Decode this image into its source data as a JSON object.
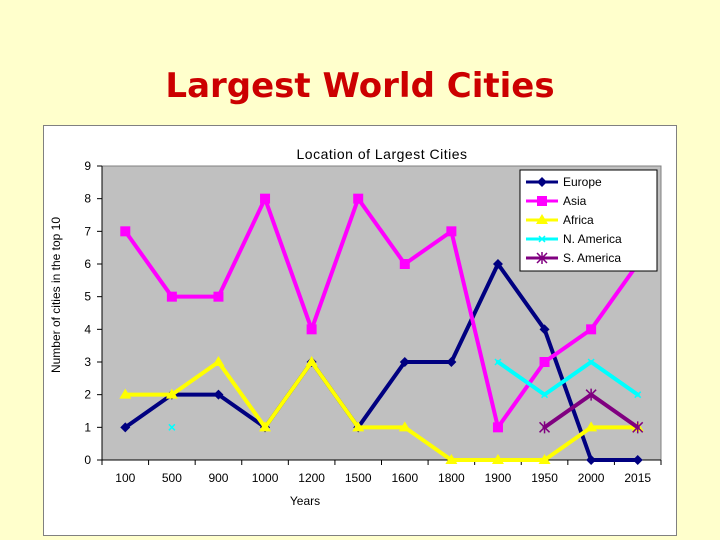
{
  "slide": {
    "title": "Largest World Cities"
  },
  "chart_data": {
    "type": "line",
    "title": "Location of Largest Cities",
    "xlabel": "Years",
    "ylabel": "Number of cities in the top 10",
    "categories": [
      "100",
      "500",
      "900",
      "1000",
      "1200",
      "1500",
      "1600",
      "1800",
      "1900",
      "1950",
      "2000",
      "2015"
    ],
    "ylim": [
      0,
      9
    ],
    "yticks": [
      0,
      1,
      2,
      3,
      4,
      5,
      6,
      7,
      8,
      9
    ],
    "grid": false,
    "legend_position": "top-right",
    "plot_background": "#c0c0c0",
    "series": [
      {
        "name": "Europe",
        "color": "#000080",
        "marker": "diamond",
        "values": [
          1,
          2,
          2,
          1,
          3,
          1,
          3,
          3,
          6,
          4,
          0,
          0
        ]
      },
      {
        "name": "Asia",
        "color": "#ff00ff",
        "marker": "square",
        "values": [
          7,
          5,
          5,
          8,
          4,
          8,
          6,
          7,
          1,
          3,
          4,
          6
        ]
      },
      {
        "name": "Africa",
        "color": "#ffff00",
        "marker": "triangle",
        "values": [
          2,
          2,
          3,
          1,
          3,
          1,
          1,
          0,
          0,
          0,
          1,
          1
        ]
      },
      {
        "name": "N. America",
        "color": "#00ffff",
        "marker": "x",
        "values": [
          null,
          1,
          null,
          null,
          null,
          null,
          null,
          null,
          3,
          2,
          3,
          2
        ]
      },
      {
        "name": "S. America",
        "color": "#800080",
        "marker": "star",
        "values": [
          null,
          null,
          null,
          null,
          null,
          null,
          null,
          null,
          null,
          1,
          2,
          1
        ]
      }
    ]
  }
}
